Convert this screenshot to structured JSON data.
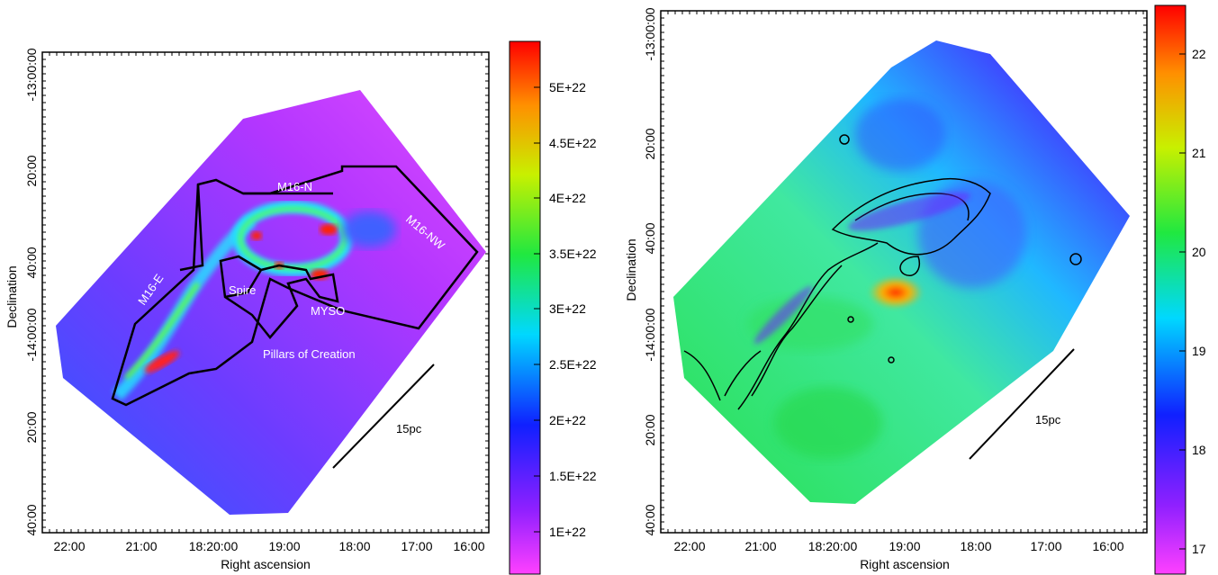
{
  "panels": [
    {
      "xlabel": "Right ascension",
      "ylabel": "Declination",
      "xticks": [
        "22:00",
        "21:00",
        "18:20:00",
        "19:00",
        "18:00",
        "17:00",
        "16:00"
      ],
      "yticks": [
        "-13:00:00",
        "20:00",
        "40:00",
        "-14:00:00",
        "20:00",
        "40:00"
      ],
      "colorbar_ticks": [
        "5E+22",
        "4.5E+22",
        "4E+22",
        "3.5E+22",
        "3E+22",
        "2.5E+22",
        "2E+22",
        "1.5E+22",
        "1E+22"
      ],
      "regions": [
        "M16-N",
        "M16-NW",
        "M16-E",
        "Spire",
        "MYSO",
        "Pillars of Creation"
      ],
      "scalebar": "15pc"
    },
    {
      "xlabel": "Right ascension",
      "ylabel": "Declination",
      "xticks": [
        "22:00",
        "21:00",
        "18:20:00",
        "19:00",
        "18:00",
        "17:00",
        "16:00"
      ],
      "yticks": [
        "-13:00:00",
        "20:00",
        "40:00",
        "-14:00:00",
        "20:00",
        "40:00"
      ],
      "colorbar_ticks": [
        "22",
        "21",
        "20",
        "19",
        "18",
        "17"
      ],
      "scalebar": "15pc"
    }
  ]
}
